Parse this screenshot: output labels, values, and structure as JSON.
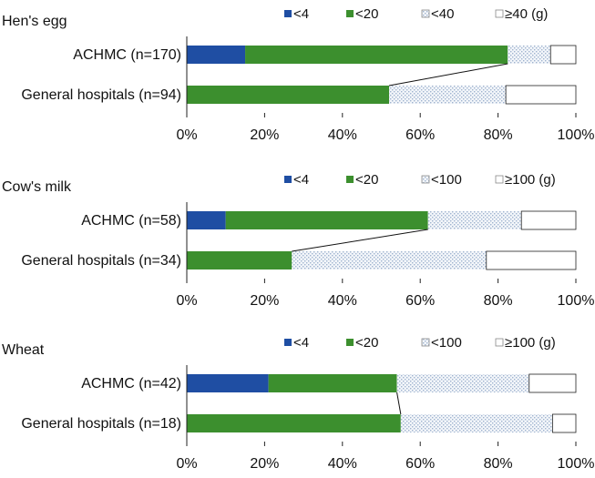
{
  "colors": {
    "lt4": "#1f4ea3",
    "lt20": "#3c8f2e",
    "pattern": "#b7c7dc",
    "white": "#ffffff",
    "axis": "#222222"
  },
  "chart_data": [
    {
      "type": "bar",
      "stacked": "100%",
      "orientation": "horizontal",
      "title": "Hen's egg",
      "legend_position": "top",
      "legend": [
        "<4",
        "<20",
        "<40",
        "≥40 (g)"
      ],
      "categories": [
        "ACHMC (n=170)",
        "General hospitals (n=94)"
      ],
      "series": [
        {
          "name": "<4",
          "values": [
            15,
            0
          ]
        },
        {
          "name": "<20",
          "values": [
            67.5,
            52
          ]
        },
        {
          "name": "<40",
          "values": [
            11,
            30
          ]
        },
        {
          "name": "≥40 (g)",
          "values": [
            6.5,
            18
          ]
        }
      ],
      "xlim": [
        0,
        100
      ],
      "x_ticks": [
        "0%",
        "20%",
        "40%",
        "60%",
        "80%",
        "100%"
      ],
      "connector": true
    },
    {
      "type": "bar",
      "stacked": "100%",
      "orientation": "horizontal",
      "title": "Cow's milk",
      "legend_position": "top",
      "legend": [
        "<4",
        "<20",
        "<100",
        "≥100 (g)"
      ],
      "categories": [
        "ACHMC (n=58)",
        "General hospitals (n=34)"
      ],
      "series": [
        {
          "name": "<4",
          "values": [
            10,
            0
          ]
        },
        {
          "name": "<20",
          "values": [
            52,
            27
          ]
        },
        {
          "name": "<100",
          "values": [
            24,
            50
          ]
        },
        {
          "name": "≥100 (g)",
          "values": [
            14,
            23
          ]
        }
      ],
      "xlim": [
        0,
        100
      ],
      "x_ticks": [
        "0%",
        "20%",
        "40%",
        "60%",
        "80%",
        "100%"
      ],
      "connector": true
    },
    {
      "type": "bar",
      "stacked": "100%",
      "orientation": "horizontal",
      "title": "Wheat",
      "legend_position": "top",
      "legend": [
        "<4",
        "<20",
        "<100",
        "≥100 (g)"
      ],
      "categories": [
        "ACHMC (n=42)",
        "General hospitals (n=18)"
      ],
      "series": [
        {
          "name": "<4",
          "values": [
            21,
            0
          ]
        },
        {
          "name": "<20",
          "values": [
            33,
            55
          ]
        },
        {
          "name": "<100",
          "values": [
            34,
            39
          ]
        },
        {
          "name": "≥100 (g)",
          "values": [
            12,
            6
          ]
        }
      ],
      "xlim": [
        0,
        100
      ],
      "x_ticks": [
        "0%",
        "20%",
        "40%",
        "60%",
        "80%",
        "100%"
      ],
      "connector": true
    }
  ]
}
